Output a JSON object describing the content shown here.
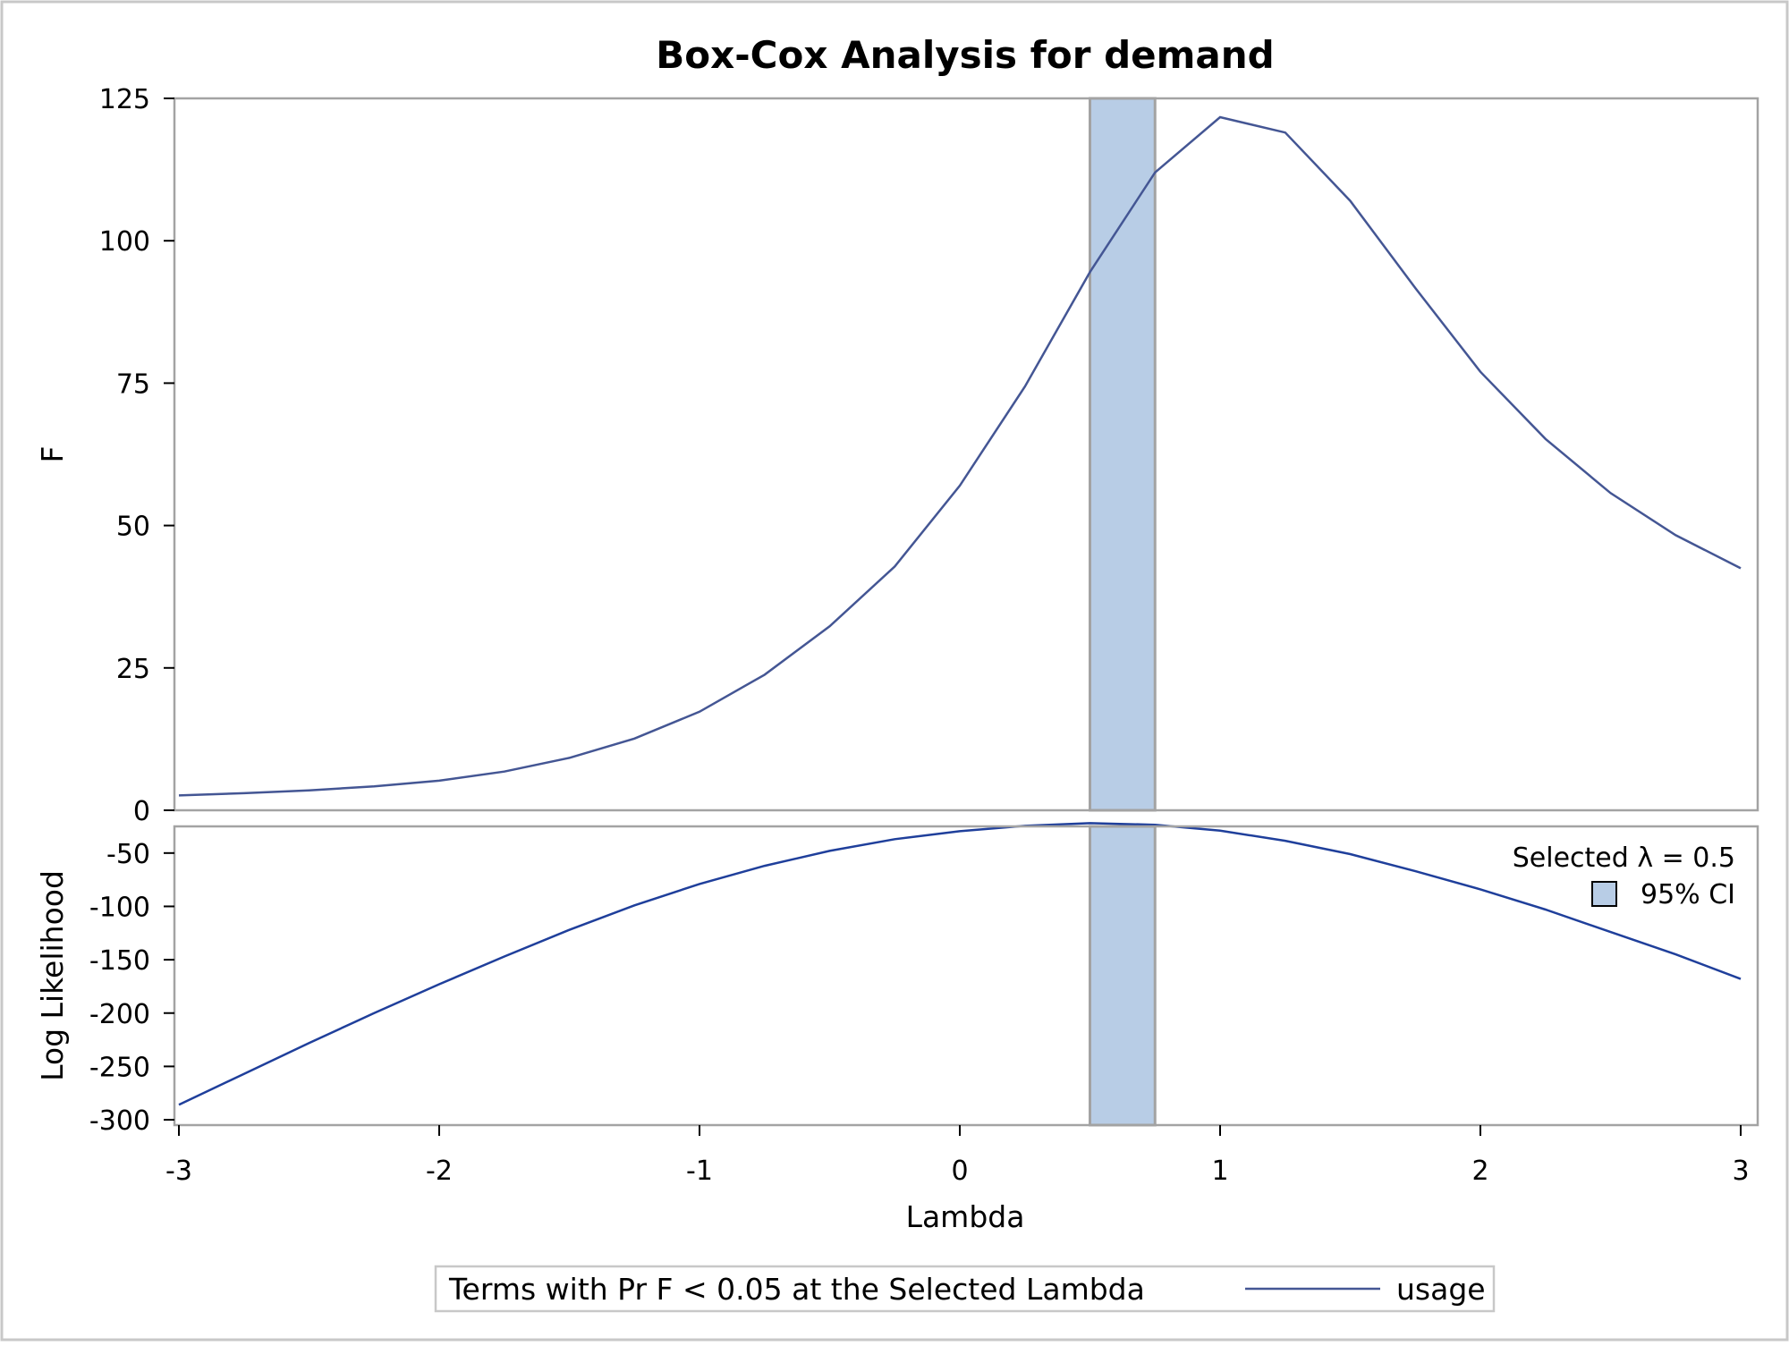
{
  "chart_data": {
    "type": "line",
    "title": "Box-Cox Analysis for demand",
    "xlabel": "Lambda",
    "xlim": [
      -3,
      3
    ],
    "x_ticks": [
      -3,
      -2,
      -1,
      0,
      1,
      2,
      3
    ],
    "x_tick_labels": [
      "-3",
      "-2",
      "-1",
      "0",
      "1",
      "2",
      "3"
    ],
    "ci": {
      "low": 0.5,
      "high": 0.75
    },
    "colors": {
      "ci_fill": "#b8cde6",
      "ci_border": "#a3a3a3",
      "f_line": "#445694",
      "ll_line": "#1f3f9b",
      "frame": "#a3a3a3"
    },
    "x": [
      -3,
      -2.75,
      -2.5,
      -2.25,
      -2,
      -1.75,
      -1.5,
      -1.25,
      -1,
      -0.75,
      -0.5,
      -0.25,
      0,
      0.25,
      0.5,
      0.75,
      1,
      1.25,
      1.5,
      1.75,
      2,
      2.25,
      2.5,
      2.75,
      3
    ],
    "panels": [
      {
        "ylabel": "F",
        "ylim": [
          0,
          125
        ],
        "y_ticks": [
          0,
          25,
          50,
          75,
          100,
          125
        ],
        "y_tick_labels": [
          "0",
          "25",
          "50",
          "75",
          "100",
          "125"
        ],
        "series": [
          {
            "name": "usage",
            "values": [
              2.6,
              3.0,
              3.5,
              4.2,
              5.2,
              6.8,
              9.2,
              12.6,
              17.3,
              23.8,
              32.3,
              42.8,
              57.0,
              74.4,
              94.5,
              112.0,
              121.7,
              119.0,
              107.0,
              91.7,
              77.0,
              65.2,
              55.7,
              48.3,
              42.5
            ]
          }
        ]
      },
      {
        "ylabel": "Log Likelihood",
        "ylim": [
          -305,
          -25
        ],
        "y_ticks": [
          -50,
          -100,
          -150,
          -200,
          -250,
          -300
        ],
        "y_tick_labels": [
          "-50",
          "-100",
          "-150",
          "-200",
          "-250",
          "-300"
        ],
        "series": [
          {
            "values": [
              -286,
              -257,
              -228,
              -200,
              -173,
              -147,
              -122,
              -99,
              -79,
              -62,
              -48,
              -37,
              -29.5,
              -24.5,
              -22,
              -23.5,
              -29,
              -38.5,
              -51,
              -67,
              -84,
              -103,
              -124,
              -145,
              -168
            ]
          }
        ]
      }
    ],
    "inset": {
      "selected_lambda_text": "Selected λ = 0.5",
      "ci_label": "95% CI"
    },
    "legend": {
      "title": "Terms with Pr F < 0.05 at the Selected Lambda",
      "entries": [
        "usage"
      ]
    }
  }
}
